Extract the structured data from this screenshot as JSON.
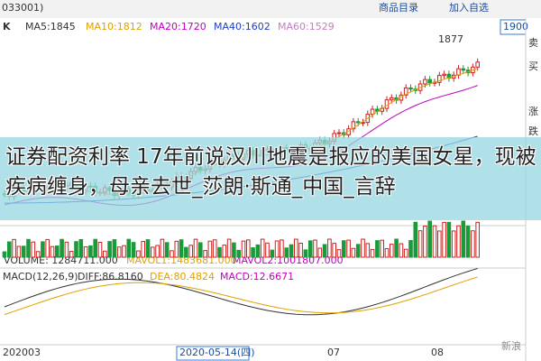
{
  "header": {
    "code": "033001)",
    "k": "K",
    "ma": [
      "MA5:1845",
      "MA10:1812",
      "MA20:1720",
      "MA40:1602",
      "MA60:1529"
    ],
    "buttons": [
      "商品目录",
      "加入自选"
    ]
  },
  "price": {
    "high": "1877",
    "right": "1900"
  },
  "volume": {
    "labels": [
      "VOLUME: 1284711.000",
      "MAVOL1:1483681.000",
      "MAVOL2:1001807.000"
    ]
  },
  "macd": {
    "labels": [
      "MACD(12,26,9)",
      "DIFF:86.8160",
      "DEA:80.4824",
      "MACD:12.6671"
    ]
  },
  "xaxis": [
    "202003",
    "2020-05-14(四)",
    "07",
    "08"
  ],
  "side": [
    "卖",
    "买",
    "涨",
    "跌"
  ],
  "banner": {
    "title": "证券配资利率 17年前说汉川地震是报应的美国女星，现被疾病缠身，母亲去世_莎朗·斯通_中国_言辞"
  },
  "watermark": "新浪"
}
